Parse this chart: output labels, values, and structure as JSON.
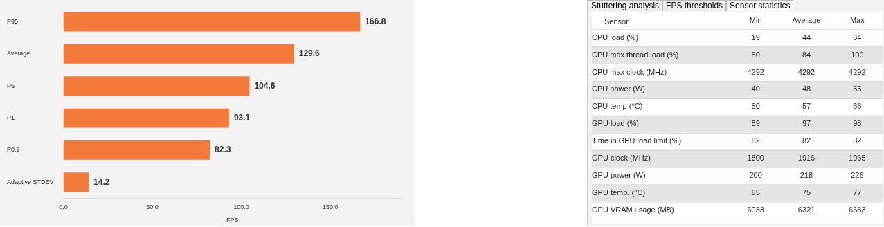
{
  "chart_data": [
    {
      "type": "bar",
      "orientation": "horizontal",
      "categories": [
        "P95",
        "Average",
        "P5",
        "P1",
        "P0.2",
        "Adaptive STDEV"
      ],
      "values": [
        166.8,
        129.6,
        104.6,
        93.1,
        82.3,
        14.2
      ],
      "color": "#f47a3c",
      "data_labels": true,
      "xlabel": "FPS",
      "xlim": [
        0,
        190
      ],
      "xticks": [
        {
          "value": 0,
          "label": "0.0"
        },
        {
          "value": 50,
          "label": "50.0"
        },
        {
          "value": 100,
          "label": "100.0"
        },
        {
          "value": 150,
          "label": "150.0"
        }
      ],
      "grid": false,
      "legend": false
    },
    {
      "type": "heatmap",
      "data_labels": true,
      "annotations": [
        "Stuttering analysis",
        "FPS thresholds",
        "Sensor statistics"
      ],
      "ylabel": "Sensor",
      "categories": [
        "Min",
        "Average",
        "Max"
      ],
      "y_categories": [
        "CPU load (%)",
        "CPU max thread load (%)",
        "CPU max clock (MHz)",
        "CPU power (W)",
        "CPU temp (°C)",
        "GPU load (%)",
        "Time in GPU load limit (%)",
        "GPU clock (MHz)",
        "GPU power (W)",
        "GPU temp. (°C)",
        "GPU VRAM usage (MB)"
      ],
      "cells": [
        [
          19,
          44,
          64
        ],
        [
          50,
          84,
          100
        ],
        [
          4292,
          4292,
          4292
        ],
        [
          40,
          48,
          55
        ],
        [
          50,
          57,
          66
        ],
        [
          89,
          97,
          98
        ],
        [
          82,
          82,
          82
        ],
        [
          1800,
          1916,
          1965
        ],
        [
          200,
          218,
          226
        ],
        [
          65,
          75,
          77
        ],
        [
          6033,
          6321,
          6683
        ]
      ]
    }
  ]
}
